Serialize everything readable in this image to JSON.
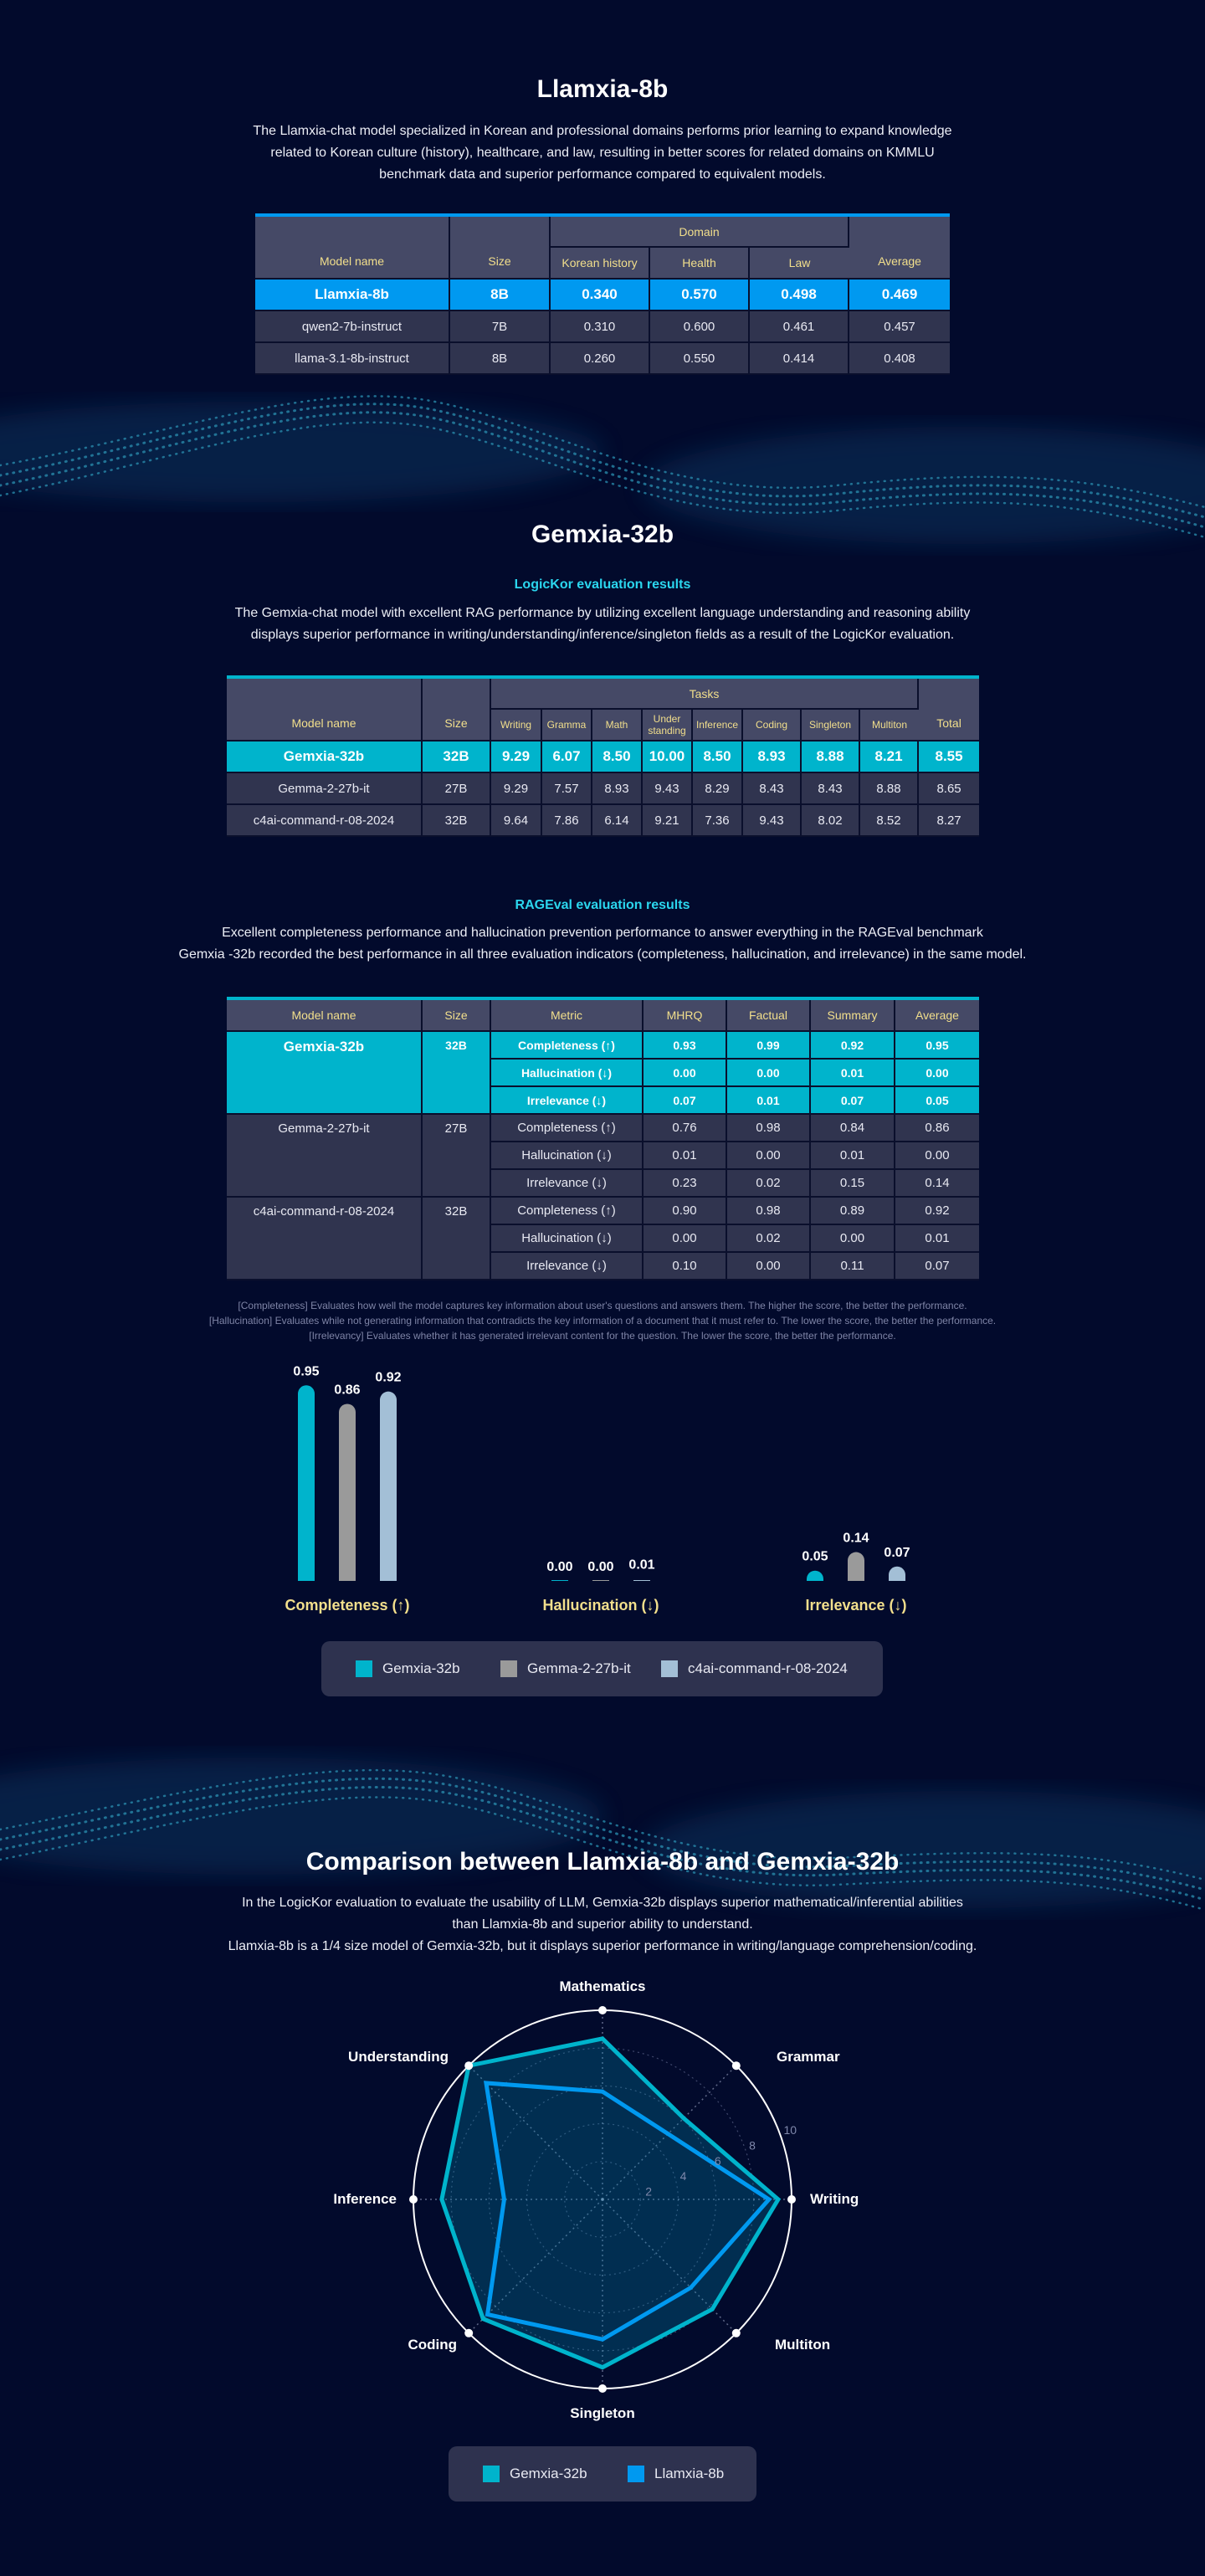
{
  "colors": {
    "background": "#020a2c",
    "llamxia_blue": "#0099f0",
    "gemxia_teal": "#00b4cc",
    "gemma_gray": "#9a9a9a",
    "c4ai_lightblue": "#a3bfd6",
    "header_text": "#f2df8c",
    "subtitle_cyan": "#2bd6ee"
  },
  "llamxia": {
    "title": "Llamxia-8b",
    "description": [
      "The Llamxia-chat model specialized in Korean and professional domains performs prior learning to expand knowledge",
      "related to Korean culture (history), healthcare, and law, resulting in better scores for related domains on KMMLU",
      "benchmark data and superior performance compared to equivalent models."
    ],
    "table": {
      "headers": {
        "model": "Model name",
        "size": "Size",
        "group": "Domain",
        "columns": [
          "Korean history",
          "Health",
          "Law"
        ],
        "average": "Average"
      },
      "rows": [
        {
          "model": "Llamxia-8b",
          "size": "8B",
          "values": [
            "0.340",
            "0.570",
            "0.498"
          ],
          "average": "0.469",
          "highlight": true
        },
        {
          "model": "qwen2-7b-instruct",
          "size": "7B",
          "values": [
            "0.310",
            "0.600",
            "0.461"
          ],
          "average": "0.457"
        },
        {
          "model": "llama-3.1-8b-instruct",
          "size": "8B",
          "values": [
            "0.260",
            "0.550",
            "0.414"
          ],
          "average": "0.408"
        }
      ]
    }
  },
  "gemxia": {
    "title": "Gemxia-32b",
    "logickor": {
      "subtitle": "LogicKor evaluation results",
      "description": [
        "The Gemxia-chat model with excellent RAG performance by utilizing excellent language understanding and reasoning ability",
        "displays superior performance in writing/understanding/inference/singleton fields as a result of the LogicKor evaluation."
      ],
      "table": {
        "headers": {
          "model": "Model name",
          "size": "Size",
          "group": "Tasks",
          "columns": [
            "Writing",
            "Gramma",
            "Math",
            "Under standing",
            "Inference",
            "Coding",
            "Singleton",
            "Multiton"
          ],
          "total": "Total"
        },
        "rows": [
          {
            "model": "Gemxia-32b",
            "size": "32B",
            "values": [
              "9.29",
              "6.07",
              "8.50",
              "10.00",
              "8.50",
              "8.93",
              "8.88",
              "8.21"
            ],
            "total": "8.55",
            "highlight": true
          },
          {
            "model": "Gemma-2-27b-it",
            "size": "27B",
            "values": [
              "9.29",
              "7.57",
              "8.93",
              "9.43",
              "8.29",
              "8.43",
              "8.43",
              "8.88"
            ],
            "total": "8.65"
          },
          {
            "model": "c4ai-command-r-08-2024",
            "size": "32B",
            "values": [
              "9.64",
              "7.86",
              "6.14",
              "9.21",
              "7.36",
              "9.43",
              "8.02",
              "8.52"
            ],
            "total": "8.27"
          }
        ]
      }
    },
    "rageval": {
      "subtitle": "RAGEval evaluation results",
      "description": [
        "Excellent completeness performance and hallucination prevention performance to answer everything in the RAGEval benchmark",
        "Gemxia -32b recorded the best performance in all three evaluation indicators (completeness, hallucination, and irrelevance) in the same model."
      ],
      "table": {
        "headers": [
          "Model name",
          "Size",
          "Metric",
          "MHRQ",
          "Factual",
          "Summary",
          "Average"
        ],
        "groups": [
          {
            "model": "Gemxia-32b",
            "size": "32B",
            "highlight": true,
            "rows": [
              {
                "metric": "Completeness (↑)",
                "values": [
                  "0.93",
                  "0.99",
                  "0.92",
                  "0.95"
                ]
              },
              {
                "metric": "Hallucination (↓)",
                "values": [
                  "0.00",
                  "0.00",
                  "0.01",
                  "0.00"
                ]
              },
              {
                "metric": "Irrelevance (↓)",
                "values": [
                  "0.07",
                  "0.01",
                  "0.07",
                  "0.05"
                ]
              }
            ]
          },
          {
            "model": "Gemma-2-27b-it",
            "size": "27B",
            "rows": [
              {
                "metric": "Completeness (↑)",
                "values": [
                  "0.76",
                  "0.98",
                  "0.84",
                  "0.86"
                ]
              },
              {
                "metric": "Hallucination (↓)",
                "values": [
                  "0.01",
                  "0.00",
                  "0.01",
                  "0.00"
                ]
              },
              {
                "metric": "Irrelevance (↓)",
                "values": [
                  "0.23",
                  "0.02",
                  "0.15",
                  "0.14"
                ]
              }
            ]
          },
          {
            "model": "c4ai-command-r-08-2024",
            "size": "32B",
            "rows": [
              {
                "metric": "Completeness (↑)",
                "values": [
                  "0.90",
                  "0.98",
                  "0.89",
                  "0.92"
                ]
              },
              {
                "metric": "Hallucination (↓)",
                "values": [
                  "0.00",
                  "0.02",
                  "0.00",
                  "0.01"
                ]
              },
              {
                "metric": "Irrelevance (↓)",
                "values": [
                  "0.10",
                  "0.00",
                  "0.11",
                  "0.07"
                ]
              }
            ]
          }
        ]
      },
      "notes": [
        "[Completeness] Evaluates how well the model captures key information about user's questions and answers them. The higher the score, the better the performance.",
        "[Hallucination] Evaluates while not generating information that contradicts the key information of a document that it must refer to. The lower the score, the better the performance.",
        "[Irrelevancy] Evaluates whether it has generated irrelevant content for the question. The lower the score, the better the performance."
      ]
    }
  },
  "comparison": {
    "title": "Comparison between Llamxia-8b and Gemxia-32b",
    "description": [
      "In the LogicKor evaluation to evaluate the usability of LLM, Gemxia-32b displays superior mathematical/inferential abilities",
      "than Llamxia-8b and superior ability to understand.",
      "Llamxia-8b is a 1/4 size model of Gemxia-32b, but it displays superior performance in writing/language comprehension/coding."
    ]
  },
  "chart_data": [
    {
      "type": "bar",
      "title": "",
      "categories": [
        "Completeness (↑)",
        "Hallucination (↓)",
        "Irrelevance (↓)"
      ],
      "series": [
        {
          "name": "Gemxia-32b",
          "color": "#00b4cc",
          "values": [
            0.95,
            0.0,
            0.05
          ],
          "labels": [
            "0.95",
            "0.00",
            "0.05"
          ]
        },
        {
          "name": "Gemma-2-27b-it",
          "color": "#9a9a9a",
          "values": [
            0.86,
            0.0,
            0.14
          ],
          "labels": [
            "0.86",
            "0.00",
            "0.14"
          ]
        },
        {
          "name": "c4ai-command-r-08-2024",
          "color": "#a3bfd6",
          "values": [
            0.92,
            0.01,
            0.07
          ],
          "labels": [
            "0.92",
            "0.01",
            "0.07"
          ]
        }
      ],
      "ylim": [
        0,
        1
      ],
      "grid": false,
      "legend": "bottom"
    },
    {
      "type": "radar",
      "axes": [
        "Mathematics",
        "Grammar",
        "Writing",
        "Multiton",
        "Singleton",
        "Coding",
        "Inference",
        "Understanding"
      ],
      "ticks": [
        "2",
        "4",
        "6",
        "8",
        "10"
      ],
      "range": [
        0,
        10
      ],
      "series": [
        {
          "name": "Gemxia-32b",
          "color": "#00b4cc",
          "values": [
            8.5,
            6.07,
            9.29,
            8.21,
            8.88,
            8.93,
            8.5,
            10.0
          ]
        },
        {
          "name": "Llamxia-8b",
          "color": "#0099f0",
          "values": [
            5.7,
            4.9,
            8.8,
            6.6,
            7.4,
            8.6,
            5.2,
            8.7
          ]
        }
      ],
      "legend": "bottom"
    }
  ]
}
